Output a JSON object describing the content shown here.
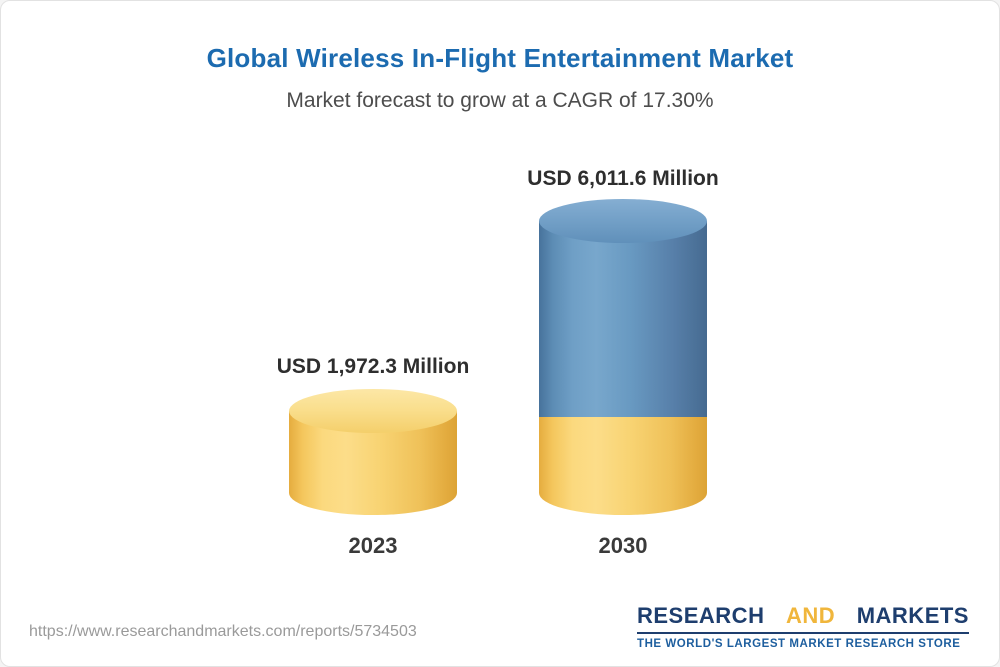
{
  "header": {
    "title": "Global Wireless In-Flight Entertainment Market",
    "subtitle": "Market forecast to grow at a CAGR of 17.30%"
  },
  "chart_data": {
    "type": "bar",
    "bar_style": "3d-cylinder",
    "title": "Global Wireless In-Flight Entertainment Market",
    "subtitle": "Market forecast to grow at a CAGR of 17.30%",
    "unit": "USD Million",
    "cagr": "17.30%",
    "categories": [
      "2023",
      "2030"
    ],
    "values": [
      1972.3,
      6011.6
    ],
    "value_labels": [
      "USD 1,972.3 Million",
      "USD 6,011.6 Million"
    ],
    "colors": {
      "base_segment": "#F6CE67",
      "growth_segment": "#5C8FB9"
    },
    "layout": {
      "legend": "none",
      "grid": "off",
      "note": "2030 cylinder stacks yellow base (2023 value) under blue growth portion"
    }
  },
  "footer": {
    "url": "https://www.researchandmarkets.com/reports/5734503",
    "logo": {
      "research": "RESEARCH",
      "and": "AND",
      "markets": "MARKETS",
      "tagline": "THE WORLD'S LARGEST MARKET RESEARCH STORE"
    }
  }
}
